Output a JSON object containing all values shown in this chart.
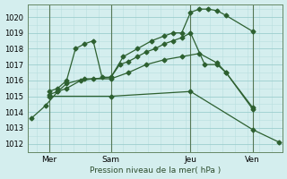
{
  "background_color": "#d4eeee",
  "grid_color_minor": "#b8dede",
  "grid_color_major": "#9ccece",
  "line_color": "#2d6030",
  "ylim": [
    1011.5,
    1020.8
  ],
  "xlim": [
    -0.2,
    14.2
  ],
  "yticks": [
    1012,
    1013,
    1014,
    1015,
    1016,
    1017,
    1018,
    1019,
    1020
  ],
  "xlabel": "Pression niveau de la mer( hPa )",
  "xtick_positions": [
    1,
    4.5,
    9.0,
    12.5
  ],
  "xtick_labels": [
    "Mer",
    "Sam",
    "Jeu",
    "Ven"
  ],
  "vline_positions": [
    1,
    4.5,
    9.0,
    12.5
  ],
  "series": [
    {
      "x": [
        0.0,
        0.8,
        1.5,
        2.0,
        2.8,
        3.5,
        4.5,
        5.2,
        6.0,
        6.8,
        7.5,
        8.0,
        8.5,
        9.0,
        9.5,
        10.0,
        10.5,
        11.0,
        12.5
      ],
      "y": [
        1013.6,
        1014.4,
        1015.3,
        1015.5,
        1016.0,
        1016.1,
        1016.2,
        1017.5,
        1018.0,
        1018.5,
        1018.8,
        1019.0,
        1019.0,
        1020.3,
        1020.5,
        1020.5,
        1020.4,
        1020.1,
        1019.1
      ],
      "linestyle": "-"
    },
    {
      "x": [
        1.0,
        1.5,
        2.0,
        2.5,
        3.0,
        3.5,
        4.0,
        4.5,
        5.0,
        5.5,
        6.0,
        6.5,
        7.0,
        7.5,
        8.0,
        8.5,
        9.0,
        9.8,
        10.5,
        11.0,
        12.5
      ],
      "y": [
        1015.3,
        1015.5,
        1016.0,
        1018.0,
        1018.3,
        1018.5,
        1016.2,
        1016.2,
        1017.0,
        1017.2,
        1017.5,
        1017.8,
        1018.0,
        1018.3,
        1018.5,
        1018.7,
        1019.0,
        1017.0,
        1017.0,
        1016.5,
        1014.3
      ],
      "linestyle": "-"
    },
    {
      "x": [
        1.0,
        1.5,
        2.0,
        3.0,
        4.5,
        5.5,
        6.5,
        7.5,
        8.5,
        9.5,
        10.5,
        11.0,
        12.5
      ],
      "y": [
        1015.1,
        1015.3,
        1015.8,
        1016.1,
        1016.1,
        1016.5,
        1017.0,
        1017.3,
        1017.5,
        1017.7,
        1017.1,
        1016.5,
        1014.2
      ],
      "linestyle": "-"
    },
    {
      "x": [
        1.0,
        4.5,
        9.0,
        12.5,
        14.0
      ],
      "y": [
        1015.0,
        1015.0,
        1015.3,
        1012.9,
        1012.1
      ],
      "linestyle": "-"
    }
  ]
}
